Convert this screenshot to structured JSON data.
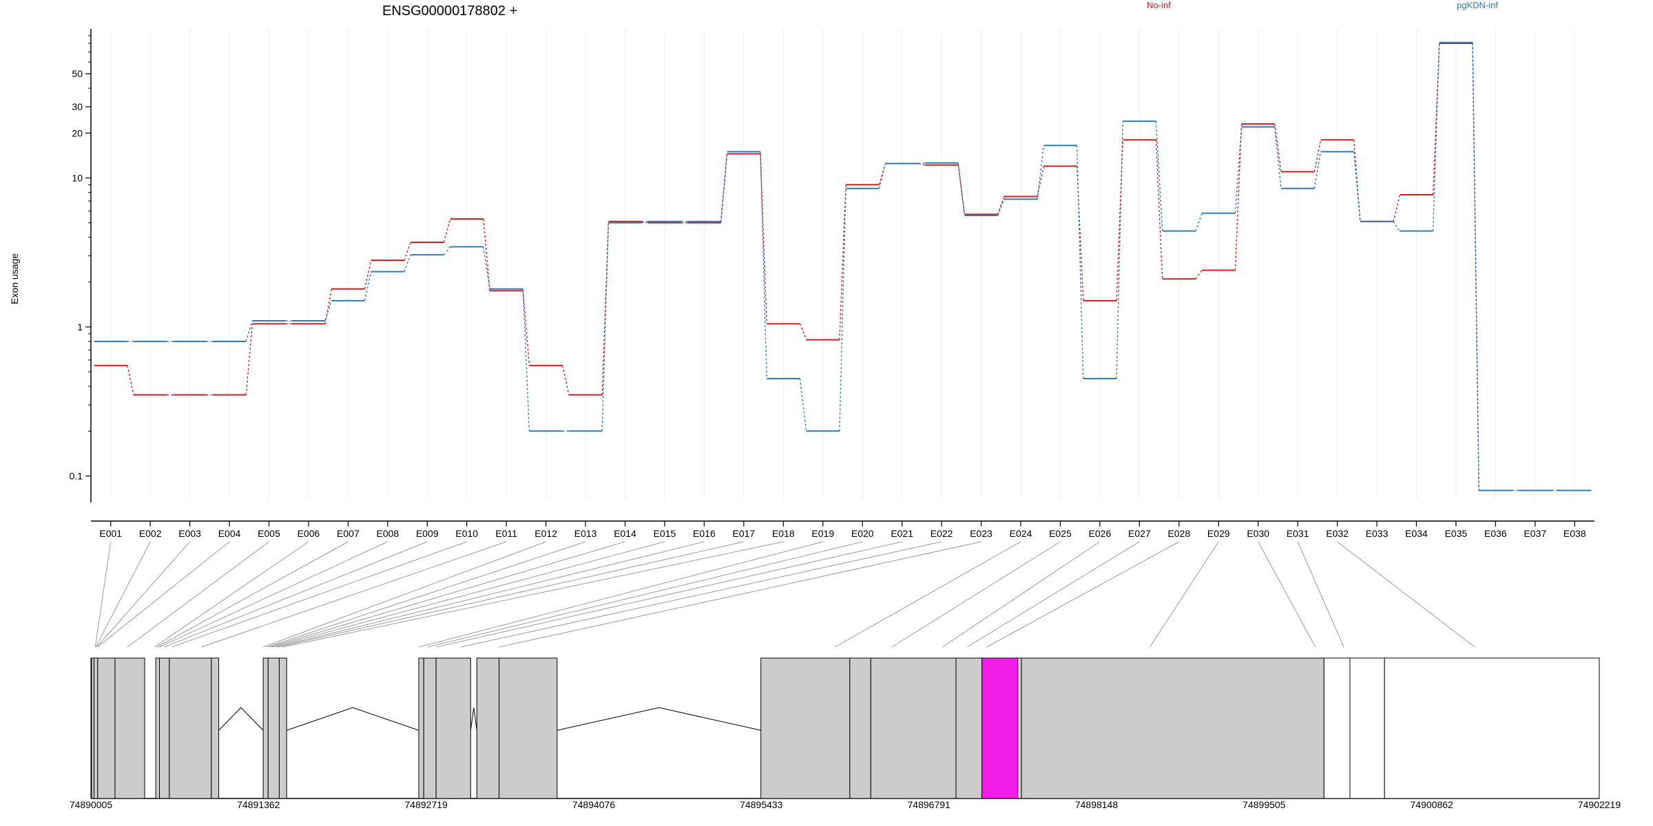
{
  "title": "ENSG00000178802 +",
  "ylabel": "Exon usage",
  "legend": [
    {
      "name": "No-inf",
      "color": "#d7191c"
    },
    {
      "name": "pgKDN-inf",
      "color": "#2c7bb6"
    }
  ],
  "highlight_color": "#f01ee6",
  "chart_data": {
    "type": "line",
    "scale": "log",
    "title": "ENSG00000178802 +",
    "ylabel": "Exon usage",
    "yticks": [
      0.1,
      1,
      10,
      20,
      30,
      50
    ],
    "ylim": [
      0.07,
      100
    ],
    "categories": [
      "E001",
      "E002",
      "E003",
      "E004",
      "E005",
      "E006",
      "E007",
      "E008",
      "E009",
      "E010",
      "E011",
      "E012",
      "E013",
      "E014",
      "E015",
      "E016",
      "E017",
      "E018",
      "E019",
      "E020",
      "E021",
      "E022",
      "E023",
      "E024",
      "E025",
      "E026",
      "E027",
      "E028",
      "E029",
      "E030",
      "E031",
      "E032",
      "E033",
      "E034",
      "E035",
      "E036",
      "E037",
      "E038"
    ],
    "series": [
      {
        "name": "No-inf",
        "color": "#d7191c",
        "values": [
          0.55,
          0.35,
          0.35,
          0.35,
          1.05,
          1.05,
          1.8,
          2.8,
          3.7,
          5.3,
          1.75,
          0.55,
          0.35,
          5.1,
          5.0,
          5.0,
          14.5,
          1.05,
          0.82,
          9.0,
          12.5,
          12.2,
          5.7,
          7.5,
          12.0,
          1.5,
          18.0,
          2.1,
          2.4,
          23.0,
          11.0,
          18.0,
          5.1,
          7.7,
          80.0,
          0.08,
          0.08,
          0.08
        ]
      },
      {
        "name": "pgKDN-inf",
        "color": "#2c7bb6",
        "values": [
          0.8,
          0.8,
          0.8,
          0.8,
          1.1,
          1.1,
          1.5,
          2.35,
          3.05,
          3.45,
          1.8,
          0.2,
          0.2,
          5.0,
          5.1,
          5.1,
          15.0,
          0.45,
          0.2,
          8.5,
          12.5,
          12.6,
          5.6,
          7.2,
          16.5,
          0.45,
          24.0,
          4.4,
          5.8,
          22.0,
          8.5,
          15.0,
          5.1,
          4.4,
          81.0,
          0.08,
          0.08,
          0.08
        ]
      }
    ]
  },
  "genome": {
    "ticks": [
      "74890005",
      "74891362",
      "74892719",
      "74894076",
      "74895433",
      "74896791",
      "74898148",
      "74899505",
      "74900862",
      "74902219"
    ],
    "start": 74890005,
    "end": 74902219,
    "exons": [
      {
        "s": 74890005,
        "e": 74890010,
        "fill": false
      },
      {
        "s": 74890010,
        "e": 74890030,
        "fill": true
      },
      {
        "s": 74890030,
        "e": 74890060,
        "fill": true
      },
      {
        "s": 74890060,
        "e": 74890200,
        "fill": true
      },
      {
        "s": 74890200,
        "e": 74890440,
        "fill": true
      },
      {
        "s": 74890530,
        "e": 74890560,
        "fill": true
      },
      {
        "s": 74890560,
        "e": 74890640,
        "fill": true
      },
      {
        "s": 74890640,
        "e": 74890980,
        "fill": true
      },
      {
        "s": 74890980,
        "e": 74891040,
        "fill": true
      },
      {
        "s": 74891400,
        "e": 74891440,
        "fill": true
      },
      {
        "s": 74891440,
        "e": 74891530,
        "fill": true
      },
      {
        "s": 74891530,
        "e": 74891590,
        "fill": true
      },
      {
        "s": 74892660,
        "e": 74892700,
        "fill": true
      },
      {
        "s": 74892700,
        "e": 74892800,
        "fill": true
      },
      {
        "s": 74892800,
        "e": 74893080,
        "fill": true
      },
      {
        "s": 74893130,
        "e": 74893310,
        "fill": true
      },
      {
        "s": 74893310,
        "e": 74893780,
        "fill": true
      },
      {
        "s": 74895430,
        "e": 74896150,
        "fill": true
      },
      {
        "s": 74896150,
        "e": 74896320,
        "fill": true
      },
      {
        "s": 74896320,
        "e": 74897010,
        "fill": true
      },
      {
        "s": 74897010,
        "e": 74897220,
        "fill": true
      },
      {
        "s": 74897220,
        "e": 74897510,
        "fill": true,
        "highlight": true
      },
      {
        "s": 74897510,
        "e": 74897540,
        "fill": true
      },
      {
        "s": 74897540,
        "e": 74899990,
        "fill": true
      },
      {
        "s": 74899990,
        "e": 74900200,
        "fill": false
      },
      {
        "s": 74900200,
        "e": 74900480,
        "fill": false
      },
      {
        "s": 74900480,
        "e": 74902219,
        "fill": false
      }
    ],
    "introns": [
      {
        "s": 74891040,
        "e": 74891400
      },
      {
        "s": 74891590,
        "e": 74892660
      },
      {
        "s": 74893080,
        "e": 74893130
      },
      {
        "s": 74893780,
        "e": 74895430
      }
    ],
    "connectors": [
      74890040,
      74890045,
      74890052,
      74890058,
      74890300,
      74890520,
      74890540,
      74890560,
      74890600,
      74890660,
      74890900,
      74891400,
      74891430,
      74891450,
      74891470,
      74891500,
      74891520,
      74891560,
      74892660,
      74892730,
      74892800,
      74893000,
      74893310,
      74896030,
      74896490,
      74896900,
      74897100,
      74897260,
      74898580,
      74899920,
      74900150,
      74901210
    ]
  }
}
